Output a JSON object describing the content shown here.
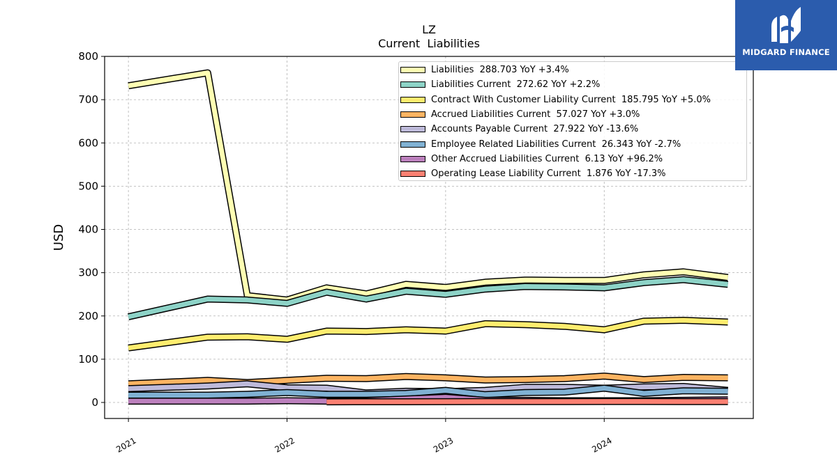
{
  "brand": {
    "name": "MIDGARD FINANCE",
    "logo_icon": "midgard-logo-icon",
    "color": "#2b5cad"
  },
  "chart_data": {
    "type": "line",
    "title": "LZ",
    "subtitle": "Current  Liabilities",
    "ylabel": "USD",
    "xlabel": "",
    "ylim": [
      -37,
      800
    ],
    "xlim": [
      2020.85,
      2024.94
    ],
    "yticks": [
      0,
      100,
      200,
      300,
      400,
      500,
      600,
      700,
      800
    ],
    "xticks": [
      {
        "value": 2021.0,
        "label": "2021"
      },
      {
        "value": 2022.0,
        "label": "2022"
      },
      {
        "value": 2023.0,
        "label": "2023"
      },
      {
        "value": 2024.0,
        "label": "2024"
      }
    ],
    "grid": true,
    "legend_position": "top-right",
    "series": [
      {
        "name": "Liabilities",
        "legend": "Liabilities  288.703 YoY +3.4%",
        "color": "#ffffb3",
        "points": [
          [
            2021.0,
            732
          ],
          [
            2021.5,
            762
          ],
          [
            2021.75,
            247
          ],
          [
            2022.0,
            237
          ],
          [
            2022.25,
            265
          ],
          [
            2022.5,
            251
          ],
          [
            2022.75,
            273
          ],
          [
            2023.0,
            266
          ],
          [
            2023.25,
            278
          ],
          [
            2023.5,
            283
          ],
          [
            2023.75,
            282
          ],
          [
            2024.0,
            282
          ],
          [
            2024.25,
            295
          ],
          [
            2024.5,
            302
          ],
          [
            2024.78,
            289
          ]
        ]
      },
      {
        "name": "Liabilities Current",
        "legend": "Liabilities Current  272.62 YoY +2.2%",
        "color": "#8dd3c7",
        "points": [
          [
            2021.0,
            198
          ],
          [
            2021.5,
            239
          ],
          [
            2021.75,
            237
          ],
          [
            2022.0,
            229
          ],
          [
            2022.25,
            255
          ],
          [
            2022.5,
            239
          ],
          [
            2022.75,
            257
          ],
          [
            2023.0,
            250
          ],
          [
            2023.25,
            262
          ],
          [
            2023.5,
            268
          ],
          [
            2023.75,
            267
          ],
          [
            2024.0,
            265
          ],
          [
            2024.25,
            277
          ],
          [
            2024.5,
            284
          ],
          [
            2024.78,
            273
          ]
        ]
      },
      {
        "name": "Contract With Customer Liability Current",
        "legend": "Contract With Customer Liability Current  185.795 YoY +5.0%",
        "color": "#ffed6f",
        "points": [
          [
            2021.0,
            126
          ],
          [
            2021.5,
            151
          ],
          [
            2021.75,
            152
          ],
          [
            2022.0,
            146
          ],
          [
            2022.25,
            165
          ],
          [
            2022.5,
            164
          ],
          [
            2022.75,
            168
          ],
          [
            2023.0,
            165
          ],
          [
            2023.25,
            182
          ],
          [
            2023.5,
            180
          ],
          [
            2023.75,
            176
          ],
          [
            2024.0,
            168
          ],
          [
            2024.25,
            188
          ],
          [
            2024.5,
            190
          ],
          [
            2024.78,
            186
          ]
        ]
      },
      {
        "name": "Accrued Liabilities Current",
        "legend": "Accrued Liabilities Current  57.027 YoY +3.0%",
        "color": "#fdb462",
        "points": [
          [
            2021.0,
            43
          ],
          [
            2021.5,
            51
          ],
          [
            2021.75,
            46
          ],
          [
            2022.0,
            51
          ],
          [
            2022.25,
            56
          ],
          [
            2022.5,
            55
          ],
          [
            2022.75,
            60
          ],
          [
            2023.0,
            57
          ],
          [
            2023.25,
            52
          ],
          [
            2023.5,
            53
          ],
          [
            2023.75,
            55
          ],
          [
            2024.0,
            61
          ],
          [
            2024.25,
            53
          ],
          [
            2024.5,
            58
          ],
          [
            2024.78,
            57
          ]
        ]
      },
      {
        "name": "Accounts Payable Current",
        "legend": "Accounts Payable Current  27.922 YoY -13.6%",
        "color": "#bebada",
        "points": [
          [
            2021.0,
            32
          ],
          [
            2021.5,
            38
          ],
          [
            2021.75,
            43
          ],
          [
            2022.0,
            34
          ],
          [
            2022.25,
            33
          ],
          [
            2022.5,
            22
          ],
          [
            2022.75,
            26
          ],
          [
            2023.0,
            25
          ],
          [
            2023.25,
            28
          ],
          [
            2023.5,
            35
          ],
          [
            2023.75,
            35
          ],
          [
            2024.0,
            33
          ],
          [
            2024.25,
            36
          ],
          [
            2024.5,
            37
          ],
          [
            2024.78,
            28
          ]
        ]
      },
      {
        "name": "Employee Related Liabilities Current",
        "legend": "Employee Related Liabilities Current  26.343 YoY -2.7%",
        "color": "#80b1d3",
        "points": [
          [
            2021.0,
            17
          ],
          [
            2021.5,
            17
          ],
          [
            2021.75,
            19
          ],
          [
            2022.0,
            23
          ],
          [
            2022.25,
            19
          ],
          [
            2022.5,
            19
          ],
          [
            2022.75,
            21
          ],
          [
            2023.0,
            28
          ],
          [
            2023.25,
            18
          ],
          [
            2023.5,
            23
          ],
          [
            2023.75,
            24
          ],
          [
            2024.0,
            33
          ],
          [
            2024.25,
            21
          ],
          [
            2024.5,
            27
          ],
          [
            2024.78,
            26
          ]
        ]
      },
      {
        "name": "Other Accrued Liabilities Current",
        "legend": "Other Accrued Liabilities Current  6.13 YoY +96.2%",
        "color": "#bc80bd",
        "points": [
          [
            2021.0,
            3
          ],
          [
            2021.5,
            3
          ],
          [
            2021.75,
            3
          ],
          [
            2022.0,
            4
          ],
          [
            2022.25,
            3
          ],
          [
            2022.5,
            4
          ],
          [
            2022.75,
            8
          ],
          [
            2023.0,
            12
          ],
          [
            2023.25,
            5
          ],
          [
            2023.5,
            5
          ],
          [
            2023.75,
            4
          ],
          [
            2024.0,
            4
          ],
          [
            2024.25,
            4
          ],
          [
            2024.5,
            5
          ],
          [
            2024.78,
            6
          ]
        ]
      },
      {
        "name": "Operating Lease Liability Current",
        "legend": "Operating Lease Liability Current  1.876 YoY -17.3%",
        "color": "#fb8072",
        "points": [
          [
            2022.25,
            1.5
          ],
          [
            2022.5,
            1.6
          ],
          [
            2022.75,
            1.7
          ],
          [
            2023.0,
            1.8
          ],
          [
            2023.25,
            1.9
          ],
          [
            2023.5,
            2.0
          ],
          [
            2023.75,
            2.1
          ],
          [
            2024.0,
            2.2
          ],
          [
            2024.25,
            2.2
          ],
          [
            2024.5,
            2.0
          ],
          [
            2024.78,
            1.9
          ]
        ]
      }
    ]
  }
}
